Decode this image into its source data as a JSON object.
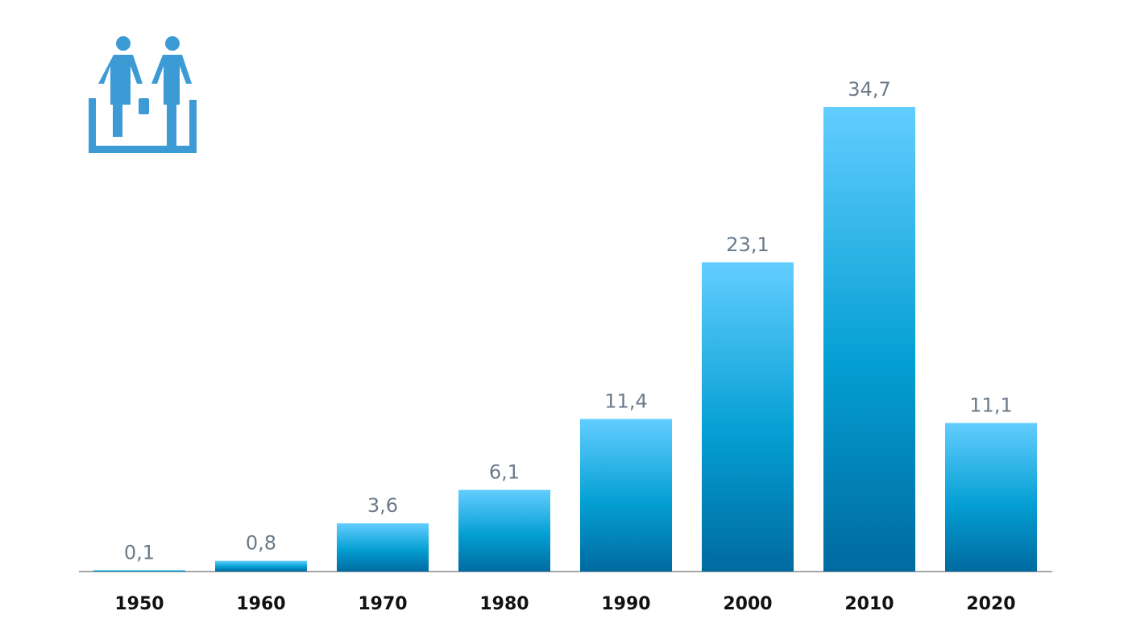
{
  "colors": {
    "bar_top": "#63cdff",
    "bar_mid": "#049fd3",
    "bar_bottom": "#006aa0",
    "icon": "#3c9bd4",
    "value_label": "#6b7a88",
    "category_label": "#111111",
    "axis_line": "#888888"
  },
  "icon": {
    "name": "two-people-escalator-icon"
  },
  "chart_data": {
    "type": "bar",
    "title": "",
    "xlabel": "",
    "ylabel": "",
    "categories": [
      "1950",
      "1960",
      "1970",
      "1980",
      "1990",
      "2000",
      "2010",
      "2020"
    ],
    "values": [
      0.1,
      0.8,
      3.6,
      6.1,
      11.4,
      23.1,
      34.7,
      11.1
    ],
    "value_labels": [
      "0,1",
      "0,8",
      "3,6",
      "6,1",
      "11,4",
      "23,1",
      "34,7",
      "11,1"
    ],
    "ylim": [
      0,
      34.7
    ],
    "grid": false,
    "legend": "none"
  }
}
